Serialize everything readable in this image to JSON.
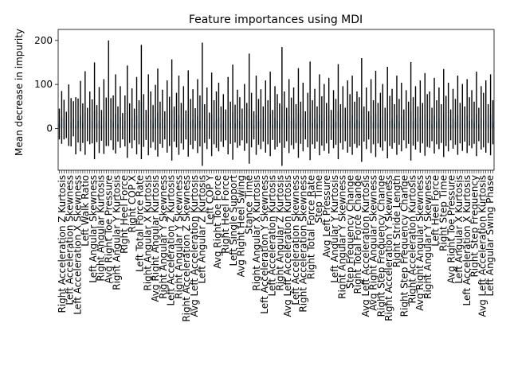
{
  "chart_data": {
    "type": "bar",
    "title": "Feature importances using MDI",
    "ylabel": "Mean decrease in impurity",
    "xlabel": "",
    "ylim": [
      -95,
      225
    ],
    "yticks": [
      0,
      100,
      200
    ],
    "grid": false,
    "legend": "none",
    "bar_color": "#1f77b4",
    "errorbar_color": "#000000",
    "visible_category_labels": [
      "Right Acceleration Z Kurtosis",
      "Left Acceleration Skewness",
      "Left Acceleration X Skewness",
      "Left Walk Ratio",
      "Left Angular Skewness",
      "Right Angular Kurtosis",
      "Avg Right Toe Pressure",
      "Right Angular Y Kurtosis",
      "Right Heel Force",
      "Right COP X",
      "Left Total Force Rate",
      "Right Angular X Kurtosis",
      "Avg Right Angular Kurtosis",
      "Right Angular Y Skewness",
      "Left Acceleration Z Kurtosis",
      "Right Angular Y Skewness",
      "Right Acceleration Z Skewness",
      "Avg Left Acceleration Kurtosis",
      "Left Angular Z Kurtosis",
      "Left COP Y",
      "Avg Right Toe Force",
      "Right Heel Force",
      "Left Single Support",
      "Avg Right Heel Swing",
      "Stance Time",
      "Right Angular X Kurtosis",
      "Left Acceleration Y Skewness",
      "Left Acceleration Kurtosis",
      "Right Angular Z Kurtosis",
      "Avg Left Acceleration Kurtosis",
      "Left Acceleration Skewness",
      "Right Acceleration Skewness",
      "Right Total Force Rate",
      "Step Time",
      "Avg Left Pressure",
      "Left Angular Y Kurtosis",
      "Right Angular Y Skewness",
      "Step Frequency Change",
      "Right Total Force Change",
      "Avg Left Acceleration Kurtosis",
      "Avg Right Angular Skewness",
      "Right Step Frequency Change",
      "Right Acceleration Y Skewness",
      "Right Stride Length",
      "Right Step Frequency Change",
      "Right Acceleration Kurtosis",
      "Avg Right Angular Skewness",
      "Right Angular Y Skewness",
      "Left Heel Force",
      "Right Step Time",
      "Avg Right Toe Pressure",
      "Left Angular X Kurtosis",
      "Left Acceleration X Kurtosis",
      "Right Step Frequency",
      "Avg Left Acceleration Kurtosis",
      "Left Angular Swing Phase"
    ],
    "series": [
      {
        "values": [
          10,
          25,
          20,
          8,
          30,
          14,
          22,
          6,
          18,
          28,
          12,
          35,
          9,
          24,
          16,
          40,
          11,
          19,
          7,
          27,
          15,
          80,
          21,
          13,
          33,
          10,
          26,
          5,
          17,
          38,
          12,
          23,
          9,
          29,
          14,
          60,
          18,
          8,
          31,
          20,
          11,
          25,
          36,
          13,
          22,
          7,
          27,
          16,
          42,
          10,
          19,
          30,
          12,
          24,
          8,
          34,
          15,
          21,
          9,
          28,
          17,
          55,
          11,
          23,
          6,
          32,
          14,
          20,
          26,
          10,
          18,
          8,
          29,
          13,
          37,
          11,
          22,
          16,
          9,
          25,
          12,
          45,
          19,
          7,
          30,
          15,
          21,
          10,
          27,
          14,
          33,
          8,
          24,
          18,
          12,
          50,
          20,
          9,
          28,
          16,
          23,
          11,
          35,
          13,
          26,
          7,
          19,
          40,
          14,
          22,
          10,
          31,
          17,
          25,
          12,
          29,
          8,
          21,
          15,
          38,
          11,
          24,
          9,
          27,
          18,
          30,
          13,
          20,
          16,
          42,
          10,
          23,
          7,
          28,
          14,
          33,
          12,
          19,
          25,
          9,
          36,
          17,
          22,
          11,
          30,
          15,
          26,
          8,
          21,
          13,
          39,
          16,
          24,
          10,
          27,
          12,
          32,
          18,
          20,
          9,
          29,
          14,
          23,
          11,
          35,
          17,
          26,
          8,
          22,
          15,
          30,
          12,
          25,
          10,
          28,
          16,
          21,
          13,
          33,
          9,
          24,
          19,
          27,
          11,
          31,
          14
        ],
        "errors": [
          35,
          60,
          45,
          30,
          70,
          55,
          40,
          65,
          50,
          80,
          45,
          95,
          38,
          60,
          50,
          110,
          42,
          75,
          35,
          85,
          55,
          120,
          48,
          62,
          90,
          40,
          70,
          30,
          58,
          105,
          45,
          68,
          36,
          88,
          50,
          130,
          60,
          34,
          92,
          64,
          42,
          74,
          100,
          48,
          66,
          32,
          82,
          56,
          115,
          40,
          62,
          90,
          46,
          72,
          33,
          98,
          52,
          68,
          37,
          84,
          58,
          140,
          44,
          70,
          30,
          95,
          50,
          64,
          78,
          40,
          60,
          35,
          88,
          48,
          108,
          43,
          66,
          55,
          36,
          76,
          46,
          125,
          62,
          32,
          90,
          52,
          68,
          40,
          82,
          50,
          96,
          34,
          72,
          60,
          45,
          135,
          64,
          38,
          84,
          54,
          70,
          44,
          102,
          48,
          78,
          32,
          62,
          112,
          50,
          68,
          40,
          92,
          56,
          76,
          46,
          86,
          34,
          66,
          52,
          108,
          44,
          72,
          38,
          82,
          60,
          90,
          48,
          64,
          55,
          118,
          40,
          70,
          32,
          84,
          50,
          98,
          46,
          62,
          76,
          38,
          104,
          57,
          68,
          44,
          90,
          52,
          78,
          35,
          66,
          48,
          112,
          55,
          72,
          40,
          82,
          46,
          94,
          60,
          64,
          38,
          86,
          50,
          70,
          44,
          100,
          57,
          78,
          35,
          68,
          52,
          90,
          46,
          76,
          40,
          84,
          55,
          66,
          48,
          96,
          38,
          72,
          62,
          82,
          44,
          92,
          50
        ]
      }
    ]
  }
}
